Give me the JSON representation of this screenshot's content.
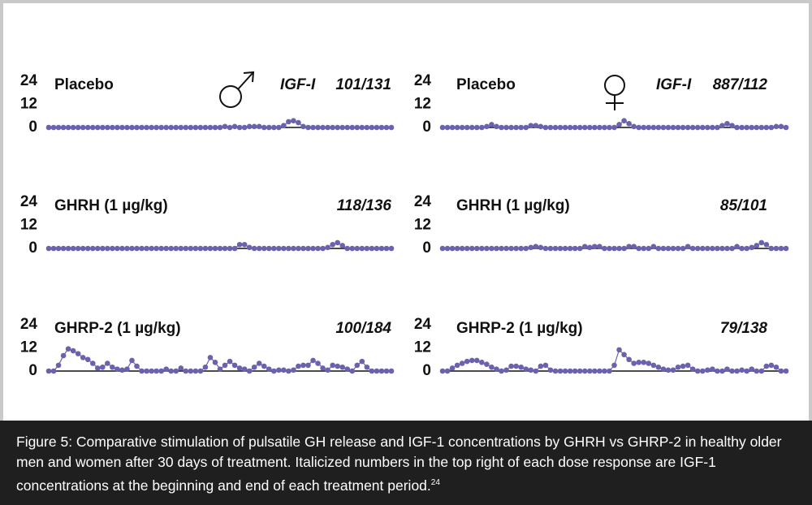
{
  "chart_data": [
    {
      "type": "line",
      "title": "Placebo",
      "annotation_label": "IGF-I",
      "annotation": "101/131",
      "color": "#6b62ad",
      "ylim": [
        0,
        24
      ],
      "yticks": [
        0,
        12,
        24
      ],
      "values": [
        0,
        0,
        0,
        0,
        0,
        0,
        0,
        0,
        0,
        0,
        0,
        0,
        0,
        0,
        0,
        0,
        0,
        0,
        0,
        0,
        0,
        0,
        0,
        0,
        0,
        0,
        0,
        0,
        0,
        0,
        0,
        0,
        0,
        0,
        0,
        0,
        0.5,
        0,
        0.5,
        0,
        0,
        0.5,
        0.5,
        0.5,
        0,
        0,
        0,
        0,
        1,
        3,
        3.5,
        2.5,
        0.5,
        0,
        0,
        0,
        0,
        0,
        0,
        0,
        0,
        0,
        0,
        0,
        0,
        0,
        0,
        0,
        0,
        0,
        0
      ]
    },
    {
      "type": "line",
      "title": "Placebo",
      "annotation_label": "IGF-I",
      "annotation": "887/112",
      "color": "#6b62ad",
      "ylim": [
        0,
        24
      ],
      "yticks": [
        0,
        12,
        24
      ],
      "values": [
        0,
        0,
        0,
        0,
        0,
        0,
        0,
        0,
        0,
        0.5,
        1.5,
        0.5,
        0,
        0,
        0,
        0,
        0,
        0,
        1,
        1,
        0.5,
        0,
        0,
        0,
        0,
        0,
        0,
        0,
        0,
        0,
        0,
        0,
        0,
        0,
        0,
        0,
        1.5,
        3.5,
        2,
        0.5,
        0,
        0,
        0,
        0,
        0,
        0,
        0,
        0,
        0,
        0,
        0,
        0,
        0,
        0,
        0,
        0,
        0,
        1,
        2,
        1,
        0,
        0,
        0,
        0,
        0,
        0,
        0,
        0,
        0.5,
        0.5,
        0
      ]
    },
    {
      "type": "line",
      "title": "GHRH (1 µg/kg)",
      "annotation": "118/136",
      "color": "#6b62ad",
      "ylim": [
        0,
        24
      ],
      "yticks": [
        0,
        12,
        24
      ],
      "values": [
        0,
        0,
        0,
        0,
        0,
        0,
        0,
        0,
        0,
        0,
        0,
        0,
        0,
        0,
        0,
        0,
        0,
        0,
        0,
        0,
        0,
        0,
        0,
        0,
        0,
        0,
        0,
        0,
        0,
        0,
        0,
        0,
        0,
        0,
        0,
        0,
        0,
        0,
        0,
        2,
        2,
        0.5,
        0,
        0,
        0,
        0,
        0,
        0,
        0,
        0,
        0,
        0,
        0,
        0,
        0,
        0,
        0,
        0.5,
        2,
        3,
        1.5,
        0,
        0,
        0,
        0,
        0,
        0,
        0,
        0,
        0,
        0
      ]
    },
    {
      "type": "line",
      "title": "GHRH (1 µg/kg)",
      "annotation": "85/101",
      "color": "#6b62ad",
      "ylim": [
        0,
        24
      ],
      "yticks": [
        0,
        12,
        24
      ],
      "values": [
        0,
        0,
        0,
        0,
        0,
        0,
        0,
        0,
        0,
        0,
        0,
        0,
        0,
        0,
        0,
        0,
        0,
        0,
        0.5,
        1,
        0.5,
        0,
        0,
        0,
        0,
        0,
        0,
        0,
        0,
        1,
        0.5,
        1,
        1,
        0,
        0,
        0,
        0,
        0,
        1,
        1,
        0,
        0,
        0,
        1,
        0,
        0,
        0,
        0,
        0,
        0,
        1,
        0,
        0,
        0,
        0,
        0,
        0,
        0,
        0,
        0,
        1,
        0,
        0,
        0.5,
        1.5,
        3,
        2,
        0,
        0,
        0,
        0
      ]
    },
    {
      "type": "line",
      "title": "GHRP-2 (1 µg/kg)",
      "annotation": "100/184",
      "color": "#6b62ad",
      "ylim": [
        0,
        24
      ],
      "yticks": [
        0,
        12,
        24
      ],
      "values": [
        0,
        0,
        3,
        8,
        11.5,
        10.5,
        9,
        7,
        6,
        4,
        1.5,
        2,
        4,
        2,
        1,
        0.5,
        1,
        5.5,
        2.5,
        0,
        0,
        0,
        0,
        0,
        1,
        0,
        0,
        1.5,
        0,
        0,
        0,
        0,
        2,
        7,
        4.5,
        1,
        3,
        5,
        3,
        1.5,
        1,
        0,
        2,
        4,
        2.5,
        1,
        0,
        0.5,
        0.5,
        0,
        0.5,
        2.5,
        3,
        3,
        5.5,
        4,
        1.5,
        0.5,
        3,
        2.5,
        2,
        1,
        0,
        3,
        5,
        2,
        0,
        0,
        0,
        0,
        0
      ]
    },
    {
      "type": "line",
      "title": "GHRP-2 (1 µg/kg)",
      "annotation": "79/138",
      "color": "#6b62ad",
      "ylim": [
        0,
        24
      ],
      "yticks": [
        0,
        12,
        24
      ],
      "values": [
        0,
        0,
        1.5,
        3,
        4,
        5,
        5.5,
        5.5,
        4.5,
        3.5,
        2,
        1,
        0,
        0.5,
        2.5,
        2.5,
        2,
        1,
        0.5,
        0,
        2.5,
        3,
        0.5,
        0,
        0,
        0,
        0,
        0,
        0,
        0,
        0,
        0,
        0,
        0,
        0,
        3,
        11,
        8.5,
        6,
        4,
        4.5,
        4.5,
        4,
        3,
        2,
        1,
        0.5,
        0.5,
        2,
        2.5,
        3,
        1,
        0,
        0,
        0.5,
        1,
        0,
        0,
        1,
        0,
        0,
        0.5,
        0,
        1,
        0,
        0,
        2.5,
        3,
        2,
        0,
        0
      ]
    }
  ],
  "caption": "Figure 5: Comparative stimulation of pulsatile GH release and IGF-1 concentrations by GHRH vs GHRP-2 in healthy older men and women after 30 days of treatment. Italicized numbers in the top right of each dose response are IGF-1 concentrations at the beginning and end of each treatment period.",
  "caption_ref": "24"
}
